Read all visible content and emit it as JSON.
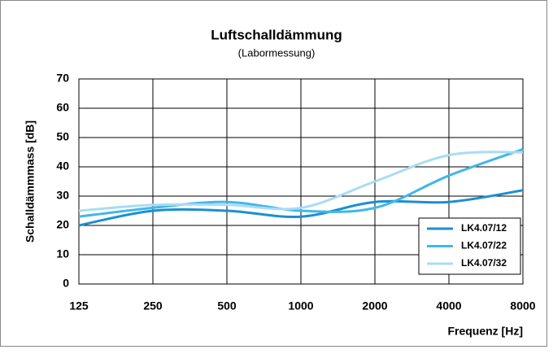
{
  "chart_data": {
    "type": "line",
    "title": "Luftschalldämmung",
    "subtitle": "(Labormessung)",
    "x_label": "Frequenz [Hz]",
    "y_label": "Schalldämmmass [dB]",
    "categories": [
      "125",
      "250",
      "500",
      "1000",
      "2000",
      "4000",
      "8000"
    ],
    "series": [
      {
        "name": "LK4.07/12",
        "color": "#1b8fd2",
        "values": [
          20,
          25,
          25,
          23,
          28,
          28,
          32
        ]
      },
      {
        "name": "LK4.07/22",
        "color": "#41b7e8",
        "values": [
          23,
          26,
          28,
          25,
          26,
          37,
          46
        ]
      },
      {
        "name": "LK4.07/32",
        "color": "#a9dcf4",
        "values": [
          25,
          27,
          27,
          26,
          35,
          44,
          45
        ]
      }
    ],
    "ylim": [
      0,
      70
    ],
    "yticks": [
      0,
      10,
      20,
      30,
      40,
      50,
      60,
      70
    ],
    "grid": true,
    "legend": "lower right"
  }
}
